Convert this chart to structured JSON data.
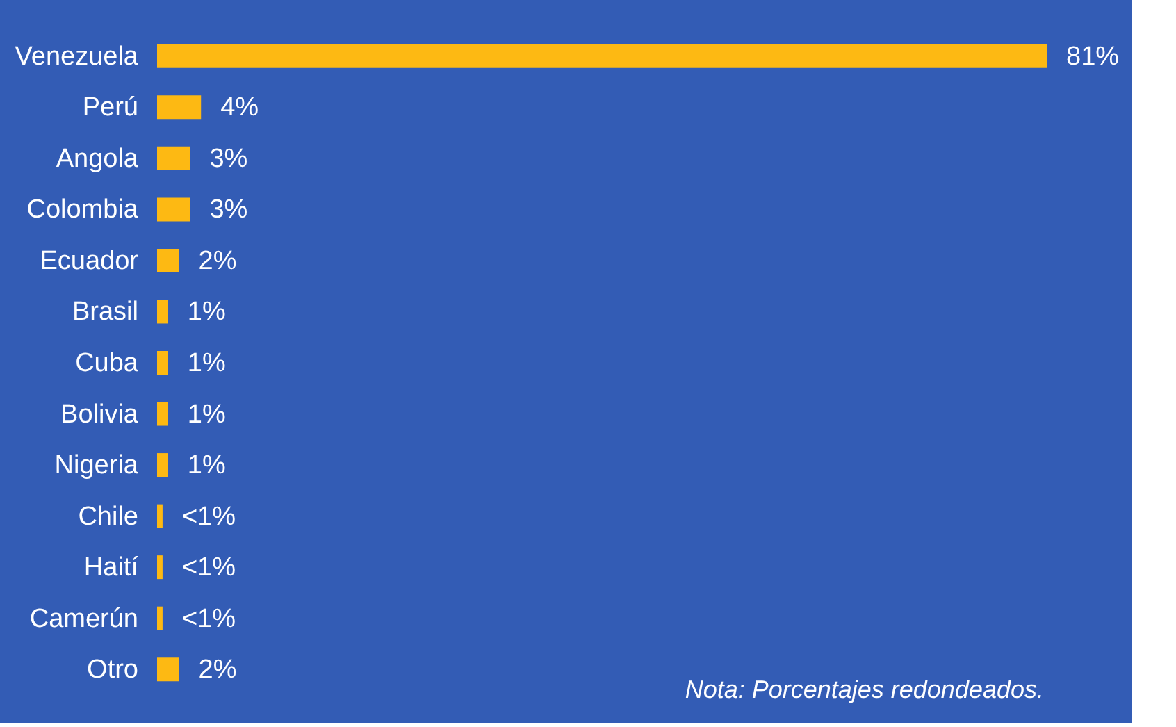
{
  "chart_data": {
    "type": "bar",
    "orientation": "horizontal",
    "categories": [
      "Venezuela",
      "Perú",
      "Angola",
      "Colombia",
      "Ecuador",
      "Brasil",
      "Cuba",
      "Bolivia",
      "Nigeria",
      "Chile",
      "Haití",
      "Camerún",
      "Otro"
    ],
    "values": [
      81,
      4,
      3,
      3,
      2,
      1,
      1,
      1,
      1,
      0.5,
      0.5,
      0.5,
      2
    ],
    "value_labels": [
      "81%",
      "4%",
      "3%",
      "3%",
      "2%",
      "1%",
      "1%",
      "1%",
      "1%",
      "<1%",
      "<1%",
      "<1%",
      "2%"
    ],
    "color": "#fdb913",
    "annotations": [
      "Nota: Porcentajes redondeados."
    ],
    "grid": false
  }
}
